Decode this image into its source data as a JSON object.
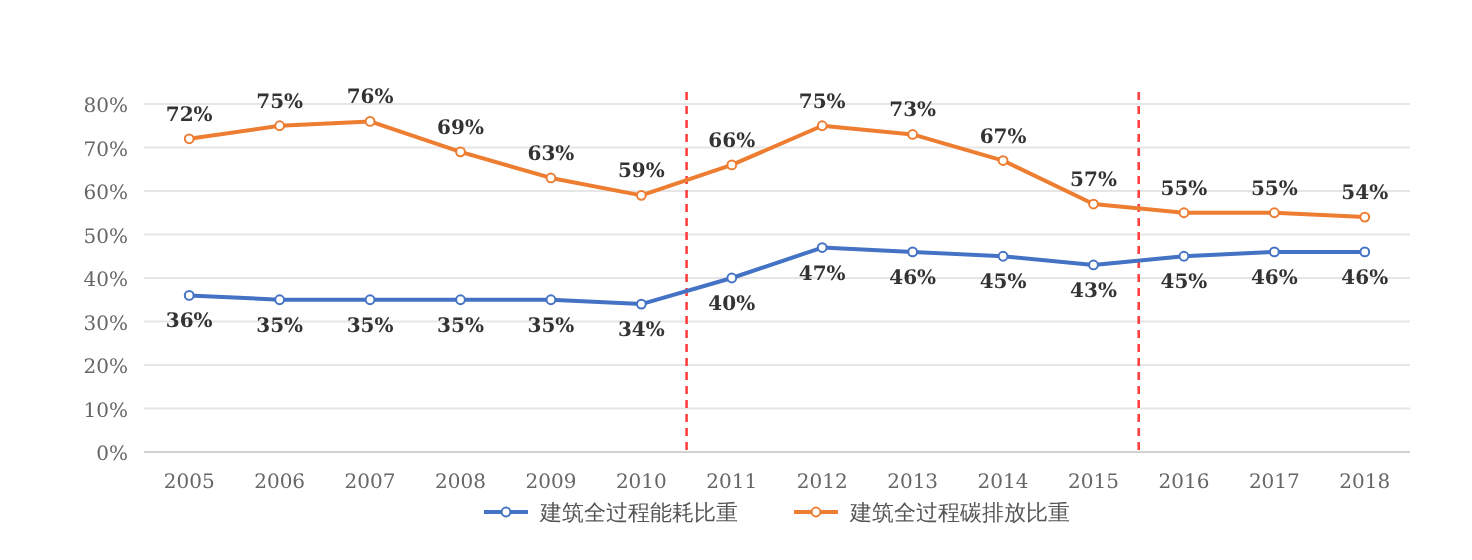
{
  "chart_data": {
    "type": "line",
    "categories": [
      "2005",
      "2006",
      "2007",
      "2008",
      "2009",
      "2010",
      "2011",
      "2012",
      "2013",
      "2014",
      "2015",
      "2016",
      "2017",
      "2018"
    ],
    "series": [
      {
        "name": "建筑全过程能耗比重",
        "color": "#4472c4",
        "values": [
          36,
          35,
          35,
          35,
          35,
          34,
          40,
          47,
          46,
          45,
          43,
          45,
          46,
          46
        ],
        "value_labels": [
          "36%",
          "35%",
          "35%",
          "35%",
          "35%",
          "34%",
          "40%",
          "47%",
          "46%",
          "45%",
          "43%",
          "45%",
          "46%",
          "46%"
        ]
      },
      {
        "name": "建筑全过程碳排放比重",
        "color": "#ed7d31",
        "values": [
          72,
          75,
          76,
          69,
          63,
          59,
          66,
          75,
          73,
          67,
          57,
          55,
          55,
          54
        ],
        "value_labels": [
          "72%",
          "75%",
          "76%",
          "69%",
          "63%",
          "59%",
          "66%",
          "75%",
          "73%",
          "67%",
          "57%",
          "55%",
          "55%",
          "54%"
        ]
      }
    ],
    "ylim": [
      0,
      80
    ],
    "yticks": [
      {
        "value": 0,
        "label": "0%"
      },
      {
        "value": 10,
        "label": "10%"
      },
      {
        "value": 20,
        "label": "20%"
      },
      {
        "value": 30,
        "label": "30%"
      },
      {
        "value": 40,
        "label": "40%"
      },
      {
        "value": 50,
        "label": "50%"
      },
      {
        "value": 60,
        "label": "60%"
      },
      {
        "value": 70,
        "label": "70%"
      },
      {
        "value": 80,
        "label": "80%"
      }
    ],
    "grid": "y",
    "legend": "bottom",
    "marker": "circle",
    "line_style": "solid"
  }
}
